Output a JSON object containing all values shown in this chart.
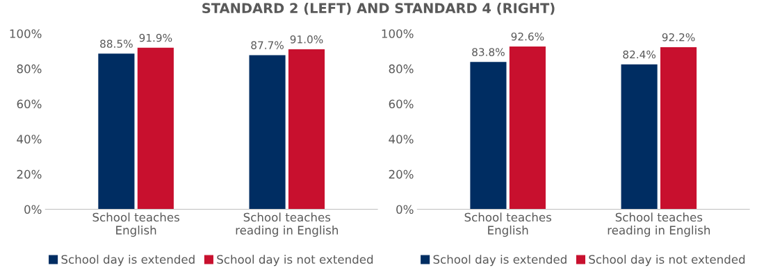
{
  "chart_data": [
    {
      "type": "bar",
      "title": "STANDARD 2 (LEFT) AND STANDARD 4 (RIGHT)",
      "categories": [
        "School teaches\nEnglish",
        "School teaches\nreading in English"
      ],
      "series": [
        {
          "name": "School day is extended",
          "color": "#002d62",
          "values": [
            88.5,
            87.7
          ],
          "value_labels": [
            "88.5%",
            "87.7%"
          ]
        },
        {
          "name": "School day is not extended",
          "color": "#c8102e",
          "values": [
            91.9,
            91.0
          ],
          "value_labels": [
            "91.9%",
            "91.0%"
          ]
        }
      ],
      "ylim": [
        0,
        100
      ],
      "yticks": [
        {
          "value": 0,
          "label": "0%"
        },
        {
          "value": 20,
          "label": "20%"
        },
        {
          "value": 40,
          "label": "40%"
        },
        {
          "value": 60,
          "label": "60%"
        },
        {
          "value": 80,
          "label": "80%"
        },
        {
          "value": 100,
          "label": "100%"
        }
      ],
      "grid": false,
      "legend": "bottom"
    },
    {
      "type": "bar",
      "categories": [
        "School teaches\nEnglish",
        "School teaches\nreading in English"
      ],
      "series": [
        {
          "name": "School day is extended",
          "color": "#002d62",
          "values": [
            83.8,
            82.4
          ],
          "value_labels": [
            "83.8%",
            "82.4%"
          ]
        },
        {
          "name": "School day is not extended",
          "color": "#c8102e",
          "values": [
            92.6,
            92.2
          ],
          "value_labels": [
            "92.6%",
            "92.2%"
          ]
        }
      ],
      "ylim": [
        0,
        100
      ],
      "yticks": [
        {
          "value": 0,
          "label": "0%"
        },
        {
          "value": 20,
          "label": "20%"
        },
        {
          "value": 40,
          "label": "40%"
        },
        {
          "value": 60,
          "label": "60%"
        },
        {
          "value": 80,
          "label": "80%"
        },
        {
          "value": 100,
          "label": "100%"
        }
      ],
      "grid": false,
      "legend": "bottom"
    }
  ]
}
